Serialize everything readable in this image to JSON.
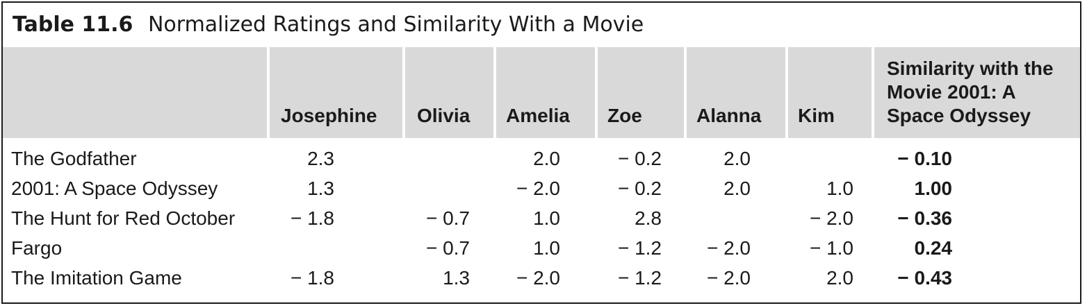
{
  "table": {
    "label": "Table 11.6",
    "title": "Normalized Ratings and Similarity With a Movie",
    "columns": [
      "Josephine",
      "Olivia",
      "Amelia",
      "Zoe",
      "Alanna",
      "Kim"
    ],
    "similarity_header": [
      "Similarity with the",
      "Movie 2001: A",
      "Space Odyssey"
    ],
    "rows": [
      {
        "movie": "The Godfather",
        "values": [
          "2.3",
          "",
          "2.0",
          "− 0.2",
          "2.0",
          ""
        ],
        "similarity": "− 0.10"
      },
      {
        "movie": "2001: A Space Odyssey",
        "values": [
          "1.3",
          "",
          "− 2.0",
          "− 0.2",
          "2.0",
          "1.0"
        ],
        "similarity": "1.00"
      },
      {
        "movie": "The Hunt for Red October",
        "values": [
          "− 1.8",
          "− 0.7",
          "1.0",
          "2.8",
          "",
          "− 2.0"
        ],
        "similarity": "− 0.36"
      },
      {
        "movie": "Fargo",
        "values": [
          "",
          "− 0.7",
          "1.0",
          "− 1.2",
          "− 2.0",
          "− 1.0"
        ],
        "similarity": "0.24"
      },
      {
        "movie": "The Imitation Game",
        "values": [
          "− 1.8",
          "1.3",
          "− 2.0",
          "− 1.2",
          "− 2.0",
          "2.0"
        ],
        "similarity": "− 0.43"
      }
    ]
  }
}
